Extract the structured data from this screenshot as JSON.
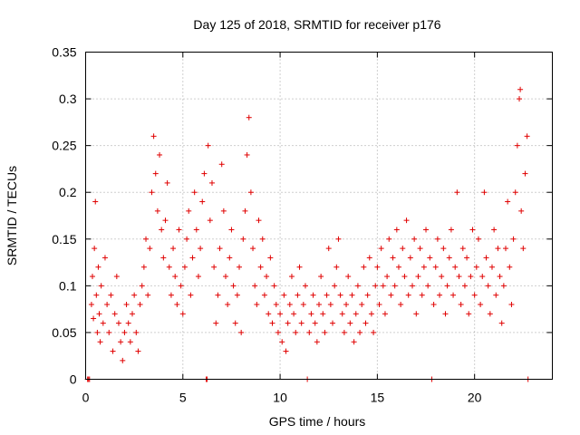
{
  "chart_data": {
    "type": "scatter",
    "title": "Day 125 of 2018, SRMTID for receiver p176",
    "xlabel": "GPS time / hours",
    "ylabel": "SRMTID / TECUs",
    "xlim": [
      0,
      24
    ],
    "ylim": [
      0,
      0.35
    ],
    "xticks": [
      0,
      5,
      10,
      15,
      20
    ],
    "xtick_labels": [
      "0",
      "5",
      "10",
      "15",
      "20"
    ],
    "yticks": [
      0,
      0.05,
      0.1,
      0.15,
      0.2,
      0.25,
      0.3,
      0.35
    ],
    "ytick_labels": [
      "0",
      "0.05",
      "0.1",
      "0.15",
      "0.2",
      "0.25",
      "0.3",
      "0.35"
    ],
    "grid": true,
    "marker": "+",
    "color": "#e00000",
    "series": [
      {
        "name": "SRMTID",
        "points": [
          [
            0.1,
            0.0
          ],
          [
            0.15,
            0.0
          ],
          [
            0.2,
            0.0
          ],
          [
            0.3,
            0.08
          ],
          [
            0.35,
            0.11
          ],
          [
            0.4,
            0.065
          ],
          [
            0.45,
            0.14
          ],
          [
            0.5,
            0.19
          ],
          [
            0.55,
            0.09
          ],
          [
            0.6,
            0.05
          ],
          [
            0.65,
            0.12
          ],
          [
            0.7,
            0.07
          ],
          [
            0.75,
            0.04
          ],
          [
            0.8,
            0.1
          ],
          [
            0.9,
            0.06
          ],
          [
            1.0,
            0.13
          ],
          [
            1.1,
            0.08
          ],
          [
            1.2,
            0.05
          ],
          [
            1.3,
            0.09
          ],
          [
            1.4,
            0.03
          ],
          [
            1.5,
            0.07
          ],
          [
            1.6,
            0.11
          ],
          [
            1.7,
            0.06
          ],
          [
            1.8,
            0.04
          ],
          [
            1.9,
            0.02
          ],
          [
            2.0,
            0.05
          ],
          [
            2.1,
            0.08
          ],
          [
            2.2,
            0.06
          ],
          [
            2.3,
            0.04
          ],
          [
            2.4,
            0.07
          ],
          [
            2.5,
            0.09
          ],
          [
            2.6,
            0.05
          ],
          [
            2.7,
            0.03
          ],
          [
            2.8,
            0.08
          ],
          [
            2.9,
            0.1
          ],
          [
            3.0,
            0.12
          ],
          [
            3.1,
            0.15
          ],
          [
            3.2,
            0.09
          ],
          [
            3.3,
            0.14
          ],
          [
            3.4,
            0.2
          ],
          [
            3.5,
            0.26
          ],
          [
            3.6,
            0.22
          ],
          [
            3.7,
            0.18
          ],
          [
            3.8,
            0.24
          ],
          [
            3.9,
            0.16
          ],
          [
            4.0,
            0.13
          ],
          [
            4.1,
            0.17
          ],
          [
            4.2,
            0.21
          ],
          [
            4.3,
            0.12
          ],
          [
            4.4,
            0.09
          ],
          [
            4.5,
            0.14
          ],
          [
            4.6,
            0.11
          ],
          [
            4.7,
            0.08
          ],
          [
            4.8,
            0.16
          ],
          [
            4.9,
            0.1
          ],
          [
            5.0,
            0.07
          ],
          [
            5.1,
            0.12
          ],
          [
            5.2,
            0.15
          ],
          [
            5.3,
            0.18
          ],
          [
            5.4,
            0.09
          ],
          [
            5.5,
            0.13
          ],
          [
            5.6,
            0.2
          ],
          [
            5.7,
            0.16
          ],
          [
            5.8,
            0.11
          ],
          [
            5.9,
            0.14
          ],
          [
            6.0,
            0.19
          ],
          [
            6.1,
            0.22
          ],
          [
            6.2,
            0.0
          ],
          [
            6.25,
            0.0
          ],
          [
            6.3,
            0.25
          ],
          [
            6.4,
            0.17
          ],
          [
            6.5,
            0.21
          ],
          [
            6.6,
            0.12
          ],
          [
            6.7,
            0.06
          ],
          [
            6.8,
            0.09
          ],
          [
            6.9,
            0.14
          ],
          [
            7.0,
            0.23
          ],
          [
            7.1,
            0.18
          ],
          [
            7.2,
            0.11
          ],
          [
            7.3,
            0.08
          ],
          [
            7.4,
            0.13
          ],
          [
            7.5,
            0.16
          ],
          [
            7.6,
            0.1
          ],
          [
            7.7,
            0.06
          ],
          [
            7.8,
            0.09
          ],
          [
            7.9,
            0.12
          ],
          [
            8.0,
            0.05
          ],
          [
            8.1,
            0.15
          ],
          [
            8.2,
            0.18
          ],
          [
            8.3,
            0.24
          ],
          [
            8.4,
            0.28
          ],
          [
            8.5,
            0.2
          ],
          [
            8.6,
            0.14
          ],
          [
            8.7,
            0.1
          ],
          [
            8.8,
            0.08
          ],
          [
            8.9,
            0.17
          ],
          [
            9.0,
            0.12
          ],
          [
            9.1,
            0.15
          ],
          [
            9.2,
            0.09
          ],
          [
            9.3,
            0.11
          ],
          [
            9.4,
            0.07
          ],
          [
            9.5,
            0.13
          ],
          [
            9.6,
            0.06
          ],
          [
            9.7,
            0.1
          ],
          [
            9.8,
            0.08
          ],
          [
            9.9,
            0.05
          ],
          [
            10.0,
            0.07
          ],
          [
            10.1,
            0.04
          ],
          [
            10.2,
            0.09
          ],
          [
            10.3,
            0.03
          ],
          [
            10.4,
            0.06
          ],
          [
            10.5,
            0.08
          ],
          [
            10.6,
            0.11
          ],
          [
            10.7,
            0.07
          ],
          [
            10.8,
            0.05
          ],
          [
            10.9,
            0.09
          ],
          [
            11.0,
            0.12
          ],
          [
            11.1,
            0.06
          ],
          [
            11.2,
            0.08
          ],
          [
            11.3,
            0.1
          ],
          [
            11.4,
            0.0
          ],
          [
            11.5,
            0.05
          ],
          [
            11.6,
            0.07
          ],
          [
            11.7,
            0.09
          ],
          [
            11.8,
            0.06
          ],
          [
            11.9,
            0.04
          ],
          [
            12.0,
            0.08
          ],
          [
            12.1,
            0.11
          ],
          [
            12.2,
            0.07
          ],
          [
            12.3,
            0.05
          ],
          [
            12.4,
            0.09
          ],
          [
            12.5,
            0.14
          ],
          [
            12.6,
            0.08
          ],
          [
            12.7,
            0.06
          ],
          [
            12.8,
            0.1
          ],
          [
            12.9,
            0.12
          ],
          [
            13.0,
            0.15
          ],
          [
            13.1,
            0.09
          ],
          [
            13.2,
            0.07
          ],
          [
            13.3,
            0.05
          ],
          [
            13.4,
            0.08
          ],
          [
            13.5,
            0.11
          ],
          [
            13.6,
            0.06
          ],
          [
            13.7,
            0.09
          ],
          [
            13.8,
            0.04
          ],
          [
            13.9,
            0.07
          ],
          [
            14.0,
            0.1
          ],
          [
            14.1,
            0.05
          ],
          [
            14.2,
            0.08
          ],
          [
            14.3,
            0.12
          ],
          [
            14.4,
            0.06
          ],
          [
            14.5,
            0.09
          ],
          [
            14.6,
            0.13
          ],
          [
            14.7,
            0.07
          ],
          [
            14.8,
            0.05
          ],
          [
            14.9,
            0.1
          ],
          [
            15.0,
            0.12
          ],
          [
            15.1,
            0.08
          ],
          [
            15.2,
            0.14
          ],
          [
            15.3,
            0.1
          ],
          [
            15.4,
            0.07
          ],
          [
            15.5,
            0.11
          ],
          [
            15.6,
            0.15
          ],
          [
            15.7,
            0.09
          ],
          [
            15.8,
            0.13
          ],
          [
            15.9,
            0.1
          ],
          [
            16.0,
            0.16
          ],
          [
            16.1,
            0.12
          ],
          [
            16.2,
            0.08
          ],
          [
            16.3,
            0.14
          ],
          [
            16.4,
            0.11
          ],
          [
            16.5,
            0.17
          ],
          [
            16.6,
            0.09
          ],
          [
            16.7,
            0.13
          ],
          [
            16.8,
            0.1
          ],
          [
            16.9,
            0.15
          ],
          [
            17.0,
            0.07
          ],
          [
            17.1,
            0.11
          ],
          [
            17.2,
            0.14
          ],
          [
            17.3,
            0.09
          ],
          [
            17.4,
            0.12
          ],
          [
            17.5,
            0.16
          ],
          [
            17.6,
            0.1
          ],
          [
            17.7,
            0.13
          ],
          [
            17.8,
            0.0
          ],
          [
            17.9,
            0.08
          ],
          [
            18.0,
            0.12
          ],
          [
            18.1,
            0.15
          ],
          [
            18.2,
            0.09
          ],
          [
            18.3,
            0.11
          ],
          [
            18.4,
            0.14
          ],
          [
            18.5,
            0.07
          ],
          [
            18.6,
            0.1
          ],
          [
            18.7,
            0.13
          ],
          [
            18.8,
            0.16
          ],
          [
            18.9,
            0.09
          ],
          [
            19.0,
            0.12
          ],
          [
            19.1,
            0.2
          ],
          [
            19.2,
            0.11
          ],
          [
            19.3,
            0.08
          ],
          [
            19.4,
            0.14
          ],
          [
            19.5,
            0.1
          ],
          [
            19.6,
            0.13
          ],
          [
            19.7,
            0.07
          ],
          [
            19.8,
            0.11
          ],
          [
            19.9,
            0.16
          ],
          [
            20.0,
            0.09
          ],
          [
            20.1,
            0.12
          ],
          [
            20.2,
            0.15
          ],
          [
            20.3,
            0.08
          ],
          [
            20.4,
            0.11
          ],
          [
            20.5,
            0.2
          ],
          [
            20.6,
            0.13
          ],
          [
            20.7,
            0.1
          ],
          [
            20.8,
            0.07
          ],
          [
            20.9,
            0.12
          ],
          [
            21.0,
            0.16
          ],
          [
            21.1,
            0.09
          ],
          [
            21.2,
            0.14
          ],
          [
            21.3,
            0.11
          ],
          [
            21.4,
            0.06
          ],
          [
            21.5,
            0.1
          ],
          [
            21.6,
            0.14
          ],
          [
            21.7,
            0.19
          ],
          [
            21.8,
            0.12
          ],
          [
            21.9,
            0.08
          ],
          [
            22.0,
            0.15
          ],
          [
            22.1,
            0.2
          ],
          [
            22.2,
            0.25
          ],
          [
            22.3,
            0.3
          ],
          [
            22.35,
            0.31
          ],
          [
            22.4,
            0.18
          ],
          [
            22.5,
            0.14
          ],
          [
            22.6,
            0.22
          ],
          [
            22.7,
            0.26
          ],
          [
            22.75,
            0.0
          ]
        ]
      }
    ]
  }
}
